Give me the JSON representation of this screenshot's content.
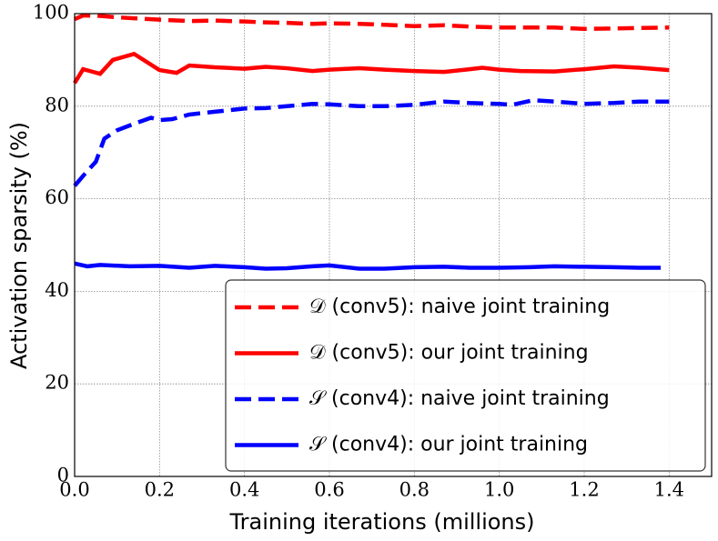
{
  "chart_data": {
    "type": "line",
    "xlabel": "Training iterations (millions)",
    "ylabel": "Activation sparsity (%)",
    "xlim": [
      0,
      1.5
    ],
    "ylim": [
      0,
      100
    ],
    "xticks": [
      {
        "value": 0,
        "label": "0.0"
      },
      0.2,
      0.4,
      0.6,
      0.8,
      {
        "value": 1,
        "label": "1.0"
      },
      1.2,
      1.4
    ],
    "yticks": [
      0,
      20,
      40,
      60,
      80,
      100
    ],
    "grid": true,
    "legend_position": "lower right",
    "series": [
      {
        "name": "𝒟 (conv5): naive joint training",
        "color": "#ff0000",
        "linestyle": "dashed",
        "x": [
          0,
          0.02,
          0.06,
          0.1,
          0.14,
          0.2,
          0.27,
          0.33,
          0.4,
          0.45,
          0.5,
          0.56,
          0.6,
          0.67,
          0.73,
          0.8,
          0.87,
          0.93,
          1.0,
          1.07,
          1.13,
          1.2,
          1.27,
          1.33,
          1.4
        ],
        "values": [
          98.8,
          99.6,
          99.5,
          99.2,
          99.0,
          98.7,
          98.4,
          98.5,
          98.3,
          98.1,
          98.0,
          97.8,
          97.9,
          97.8,
          97.6,
          97.3,
          97.5,
          97.2,
          97.0,
          97.0,
          97.0,
          96.7,
          96.8,
          96.9,
          97.0
        ]
      },
      {
        "name": "𝒟 (conv5): our joint training",
        "color": "#ff0000",
        "linestyle": "solid",
        "x": [
          0,
          0.02,
          0.04,
          0.06,
          0.09,
          0.14,
          0.2,
          0.24,
          0.27,
          0.33,
          0.4,
          0.45,
          0.5,
          0.56,
          0.6,
          0.67,
          0.73,
          0.8,
          0.87,
          0.93,
          0.96,
          1.0,
          1.05,
          1.13,
          1.2,
          1.27,
          1.33,
          1.4
        ],
        "values": [
          85,
          88,
          87.5,
          87,
          90,
          91.3,
          87.8,
          87.2,
          88.8,
          88.4,
          88.1,
          88.5,
          88.2,
          87.6,
          87.9,
          88.2,
          87.9,
          87.6,
          87.4,
          88.0,
          88.3,
          87.9,
          87.6,
          87.5,
          88.0,
          88.6,
          88.3,
          87.8
        ]
      },
      {
        "name": "𝒮 (conv4): naive joint training",
        "color": "#0000ff",
        "linestyle": "dashed",
        "x": [
          0,
          0.03,
          0.05,
          0.07,
          0.1,
          0.14,
          0.18,
          0.2,
          0.23,
          0.27,
          0.33,
          0.4,
          0.45,
          0.5,
          0.56,
          0.6,
          0.67,
          0.73,
          0.8,
          0.87,
          0.93,
          1.0,
          1.03,
          1.08,
          1.13,
          1.2,
          1.27,
          1.33,
          1.4
        ],
        "values": [
          62.8,
          66,
          68,
          73,
          74.8,
          76.2,
          77.5,
          77.0,
          77.2,
          78.2,
          78.8,
          79.5,
          79.6,
          80.0,
          80.5,
          80.4,
          80.0,
          80.0,
          80.3,
          81.0,
          80.7,
          80.5,
          80.3,
          81.3,
          81.0,
          80.5,
          80.7,
          81.0,
          81.0
        ]
      },
      {
        "name": "𝒮 (conv4): our joint training",
        "color": "#0000ff",
        "linestyle": "solid",
        "x": [
          0,
          0.03,
          0.06,
          0.13,
          0.2,
          0.27,
          0.33,
          0.4,
          0.45,
          0.5,
          0.56,
          0.6,
          0.67,
          0.73,
          0.8,
          0.87,
          0.93,
          1.0,
          1.07,
          1.13,
          1.2,
          1.27,
          1.33,
          1.38
        ],
        "values": [
          46,
          45.4,
          45.7,
          45.4,
          45.5,
          45.1,
          45.5,
          45.2,
          44.9,
          45.0,
          45.4,
          45.6,
          44.9,
          44.9,
          45.2,
          45.3,
          45.1,
          45.1,
          45.2,
          45.4,
          45.3,
          45.2,
          45.1,
          45.1
        ]
      }
    ]
  }
}
